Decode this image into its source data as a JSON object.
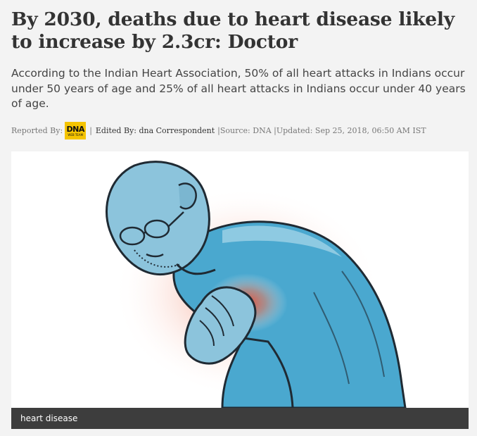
{
  "article": {
    "headline": "By 2030, deaths due to heart disease likely to increase by 2.3cr: Doctor",
    "summary": "According to the Indian Heart Association, 50% of all heart attacks in Indians occur under 50 years of age and 25% of all heart attacks in Indians occur under 40 years of age.",
    "byline": {
      "reported_by_label": "Reported By:",
      "logo_text": "DNA",
      "logo_subtext": "WEB TEAM",
      "separator": "|",
      "edited_by": "Edited By: dna Correspondent",
      "source_and_updated": "|Source: DNA |Updated: Sep 25, 2018, 06:50 AM IST"
    }
  },
  "image": {
    "caption": "heart disease",
    "subject": "illustration-man-clutching-chest",
    "colors": {
      "skin": "#8cc4dc",
      "shirt": "#4aa8cf",
      "outline": "#1f2a33",
      "pain_glow": "#e8462f"
    }
  }
}
